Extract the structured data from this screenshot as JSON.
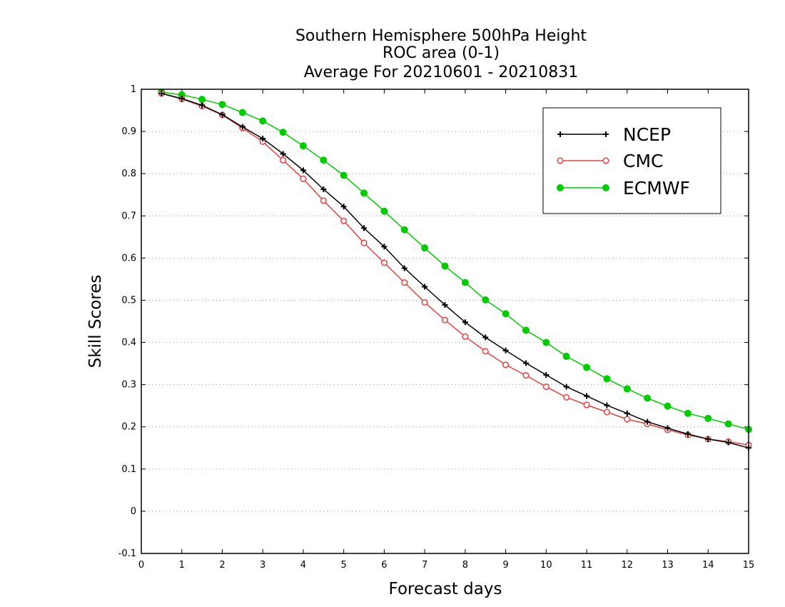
{
  "chart_data": {
    "type": "line",
    "title_lines": [
      "Southern Hemisphere 500hPa Height",
      "ROC area (0-1)",
      "Average For 20210601 - 20210831"
    ],
    "xlabel": "Forecast days",
    "ylabel": "Skill Scores",
    "xlim": [
      0,
      15
    ],
    "ylim": [
      -0.1,
      1
    ],
    "xticks": [
      "0",
      "1",
      "2",
      "3",
      "4",
      "5",
      "6",
      "7",
      "8",
      "9",
      "10",
      "11",
      "12",
      "13",
      "14",
      "15"
    ],
    "yticks": [
      "-0.1",
      "0",
      "0.1",
      "0.2",
      "0.3",
      "0.4",
      "0.5",
      "0.6",
      "0.7",
      "0.8",
      "0.9",
      "1"
    ],
    "grid": "horizontal dotted",
    "legend_position": "top-right",
    "x": [
      0.5,
      1,
      1.5,
      2,
      2.5,
      3,
      3.5,
      4,
      4.5,
      5,
      5.5,
      6,
      6.5,
      7,
      7.5,
      8,
      8.5,
      9,
      9.5,
      10,
      10.5,
      11,
      11.5,
      12,
      12.5,
      13,
      13.5,
      14,
      14.5,
      15
    ],
    "series": [
      {
        "name": "NCEP",
        "color": "#000000",
        "marker": "plus",
        "values": [
          0.99,
          0.978,
          0.962,
          0.94,
          0.911,
          0.883,
          0.847,
          0.808,
          0.763,
          0.722,
          0.671,
          0.627,
          0.576,
          0.532,
          0.489,
          0.448,
          0.412,
          0.381,
          0.351,
          0.323,
          0.295,
          0.273,
          0.251,
          0.232,
          0.212,
          0.197,
          0.183,
          0.171,
          0.163,
          0.15
        ]
      },
      {
        "name": "CMC",
        "color": "#e84040",
        "marker": "open-circle",
        "values": [
          0.99,
          0.977,
          0.96,
          0.939,
          0.908,
          0.876,
          0.832,
          0.788,
          0.736,
          0.688,
          0.636,
          0.589,
          0.542,
          0.495,
          0.453,
          0.414,
          0.379,
          0.347,
          0.322,
          0.295,
          0.27,
          0.252,
          0.235,
          0.218,
          0.207,
          0.193,
          0.181,
          0.171,
          0.165,
          0.157
        ]
      },
      {
        "name": "ECMWF",
        "color": "#00cc00",
        "marker": "filled-circle",
        "values": [
          0.993,
          0.987,
          0.976,
          0.964,
          0.945,
          0.925,
          0.898,
          0.866,
          0.832,
          0.796,
          0.754,
          0.711,
          0.667,
          0.624,
          0.581,
          0.542,
          0.501,
          0.468,
          0.429,
          0.4,
          0.367,
          0.341,
          0.314,
          0.29,
          0.268,
          0.249,
          0.232,
          0.22,
          0.207,
          0.194
        ]
      }
    ]
  }
}
